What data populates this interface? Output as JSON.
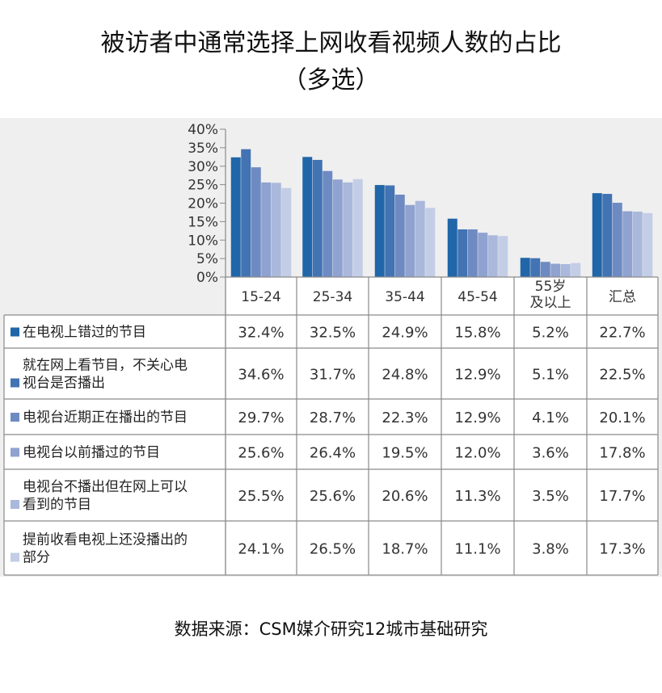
{
  "title_line1": "被访者中通常选择上网收看视频人数的占比",
  "title_line2": "（多选）",
  "source": "数据来源：CSM媒介研究12城市基础研究",
  "chart_data": {
    "type": "bar",
    "categories": [
      "15-24",
      "25-34",
      "35-44",
      "45-54",
      [
        "55岁",
        "及以上"
      ],
      "汇总"
    ],
    "ylim": [
      0,
      40
    ],
    "y_ticks": [
      "0%",
      "5%",
      "10%",
      "15%",
      "20%",
      "25%",
      "30%",
      "35%",
      "40%"
    ],
    "series": [
      {
        "name": [
          "在电视上错过的节目"
        ],
        "color": "#2066a8",
        "values": [
          32.4,
          32.5,
          24.9,
          15.8,
          5.2,
          22.7
        ],
        "labels": [
          "32.4%",
          "32.5%",
          "24.9%",
          "15.8%",
          "5.2%",
          "22.7%"
        ]
      },
      {
        "name": [
          "就在网上看节目，不关心电",
          "视台是否播出"
        ],
        "color": "#4273b3",
        "values": [
          34.6,
          31.7,
          24.8,
          12.9,
          5.1,
          22.5
        ],
        "labels": [
          "34.6%",
          "31.7%",
          "24.8%",
          "12.9%",
          "5.1%",
          "22.5%"
        ]
      },
      {
        "name": [
          "电视台近期正在播出的节目"
        ],
        "color": "#6e8ac2",
        "values": [
          29.7,
          28.7,
          22.3,
          12.9,
          4.1,
          20.1
        ],
        "labels": [
          "29.7%",
          "28.7%",
          "22.3%",
          "12.9%",
          "4.1%",
          "20.1%"
        ]
      },
      {
        "name": [
          "电视台以前播过的节目"
        ],
        "color": "#8fa2d0",
        "values": [
          25.6,
          26.4,
          19.5,
          12.0,
          3.6,
          17.8
        ],
        "labels": [
          "25.6%",
          "26.4%",
          "19.5%",
          "12.0%",
          "3.6%",
          "17.8%"
        ]
      },
      {
        "name": [
          "电视台不播出但在网上可以",
          "看到的节目"
        ],
        "color": "#aab8dc",
        "values": [
          25.5,
          25.6,
          20.6,
          11.3,
          3.5,
          17.7
        ],
        "labels": [
          "25.5%",
          "25.6%",
          "20.6%",
          "11.3%",
          "3.5%",
          "17.7%"
        ]
      },
      {
        "name": [
          "提前收看电视上还没播出的",
          "部分"
        ],
        "color": "#c3cde6",
        "values": [
          24.1,
          26.5,
          18.7,
          11.1,
          3.8,
          17.3
        ],
        "labels": [
          "24.1%",
          "26.5%",
          "18.7%",
          "11.1%",
          "3.8%",
          "17.3%"
        ]
      }
    ],
    "grid": false,
    "legend": "table-left"
  }
}
